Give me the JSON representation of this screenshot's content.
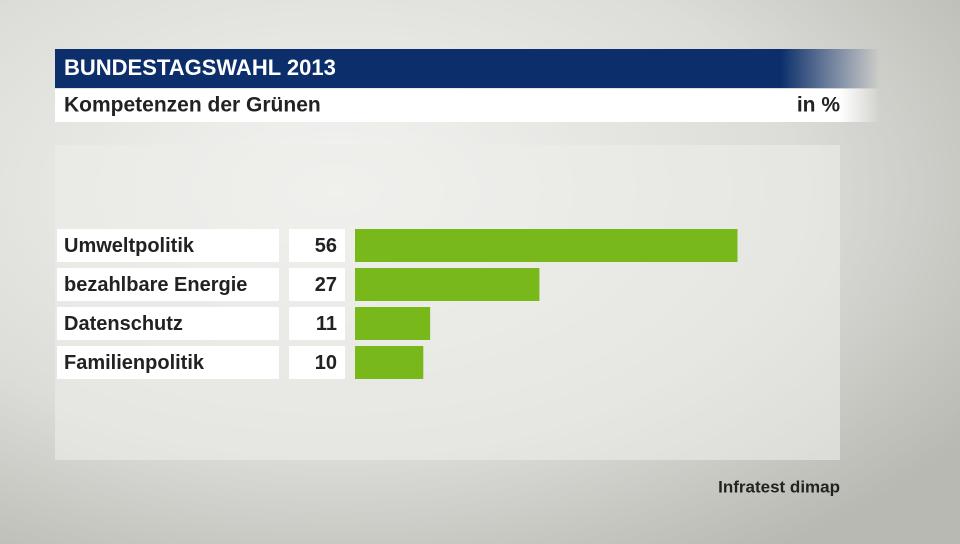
{
  "chart_data": {
    "type": "bar",
    "orientation": "horizontal",
    "title": "BUNDESTAGSWAHL 2013",
    "subtitle": "Kompetenzen der Grünen",
    "unit": "in %",
    "categories": [
      "Umweltpolitik",
      "bezahlbare Energie",
      "Datenschutz",
      "Familienpolitik"
    ],
    "values": [
      56,
      27,
      11,
      10
    ],
    "color": "#78b81a",
    "source": "Infratest dimap"
  }
}
